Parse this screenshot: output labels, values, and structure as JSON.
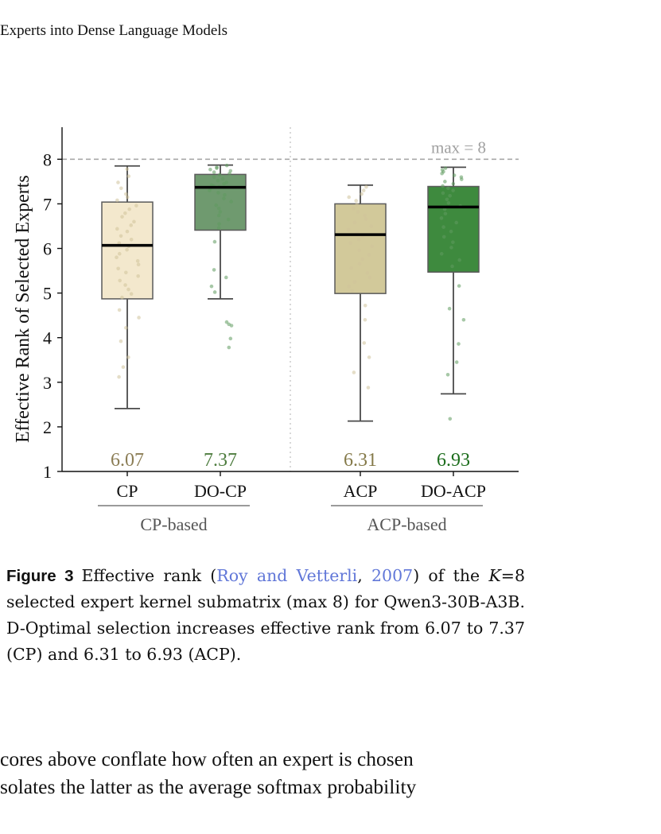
{
  "running_head": "Experts into Dense Language Models",
  "chart_data": {
    "type": "box",
    "ylabel": "Effective Rank of Selected Experts",
    "ylim": [
      1,
      8.65
    ],
    "yticks": [
      1,
      2,
      3,
      4,
      5,
      6,
      7,
      8
    ],
    "reference_line": {
      "value": 8,
      "label": "max = 8"
    },
    "groups": [
      {
        "label": "CP-based",
        "members": [
          "CP",
          "DO-CP"
        ]
      },
      {
        "label": "ACP-based",
        "members": [
          "ACP",
          "DO-ACP"
        ]
      }
    ],
    "boxes": [
      {
        "category": "CP",
        "whisker_low": 2.41,
        "q1": 4.87,
        "median": 6.07,
        "q3": 7.04,
        "whisker_high": 7.85,
        "median_label": "6.07",
        "fill": "#f3e8cd",
        "label_color": "#8b7d55",
        "points": [
          7.78,
          7.62,
          7.48,
          7.35,
          7.22,
          7.15,
          7.08,
          6.96,
          6.88,
          6.79,
          6.71,
          6.6,
          6.52,
          6.44,
          6.38,
          6.28,
          6.2,
          6.12,
          6.05,
          5.97,
          5.88,
          5.8,
          5.72,
          5.64,
          5.55,
          5.46,
          5.38,
          5.28,
          5.18,
          5.08,
          4.98,
          4.9,
          4.62,
          4.45,
          4.22,
          3.92,
          3.56,
          3.34,
          3.12
        ]
      },
      {
        "category": "DO-CP",
        "whisker_low": 4.87,
        "q1": 6.41,
        "median": 7.37,
        "q3": 7.66,
        "whisker_high": 7.87,
        "median_label": "7.37",
        "fill": "#6f9a6f",
        "label_color": "#4e7d3f",
        "points": [
          7.86,
          7.82,
          7.8,
          7.77,
          7.74,
          7.71,
          7.68,
          7.65,
          7.6,
          7.56,
          7.52,
          7.48,
          7.45,
          7.42,
          7.4,
          7.38,
          7.35,
          7.3,
          7.25,
          7.2,
          7.12,
          7.05,
          6.97,
          6.9,
          6.82,
          6.74,
          6.65,
          6.55,
          6.46,
          6.15,
          5.52,
          5.35,
          5.15,
          5.02,
          4.35,
          4.3,
          4.27,
          3.98,
          3.78
        ]
      },
      {
        "category": "ACP",
        "whisker_low": 2.13,
        "q1": 4.99,
        "median": 6.31,
        "q3": 7.0,
        "whisker_high": 7.42,
        "median_label": "6.31",
        "fill": "#d2c99a",
        "label_color": "#857a4a",
        "points": [
          7.38,
          7.3,
          7.22,
          7.15,
          7.07,
          6.98,
          6.9,
          6.82,
          6.74,
          6.66,
          6.58,
          6.5,
          6.42,
          6.35,
          6.28,
          6.2,
          6.12,
          6.05,
          5.96,
          5.86,
          5.76,
          5.66,
          5.56,
          5.45,
          5.35,
          5.25,
          5.15,
          5.05,
          4.72,
          4.4,
          3.88,
          3.56,
          3.22,
          2.88
        ]
      },
      {
        "category": "DO-ACP",
        "whisker_low": 2.74,
        "q1": 5.47,
        "median": 6.93,
        "q3": 7.39,
        "whisker_high": 7.82,
        "median_label": "6.93",
        "fill": "#3e8a3e",
        "label_color": "#1c6d1c",
        "points": [
          7.8,
          7.76,
          7.72,
          7.68,
          7.64,
          7.6,
          7.55,
          7.5,
          7.45,
          7.4,
          7.35,
          7.3,
          7.24,
          7.18,
          7.1,
          7.02,
          6.95,
          6.88,
          6.78,
          6.68,
          6.58,
          6.48,
          6.38,
          6.26,
          6.14,
          6.02,
          5.88,
          5.74,
          5.6,
          5.16,
          4.65,
          4.4,
          3.86,
          3.45,
          3.17,
          2.18
        ]
      }
    ]
  },
  "caption": {
    "label": "Figure 3",
    "before": "Effective rank (",
    "cite_author": "Roy and Vetterli",
    "cite_sep": ", ",
    "cite_year": "2007",
    "after_cite": ") of the ",
    "k_var": "K",
    "after_k": "=8 selected expert kernel submatrix (max 8) for Qwen3-30B-A3B. D-Optimal selection increases effective rank from 6.07 to 7.37 (CP) and 6.31 to 6.93 (ACP)."
  },
  "body_text": {
    "line1": "cores above conflate how often an expert is chosen",
    "line2": "solates the latter as the average softmax probability"
  }
}
